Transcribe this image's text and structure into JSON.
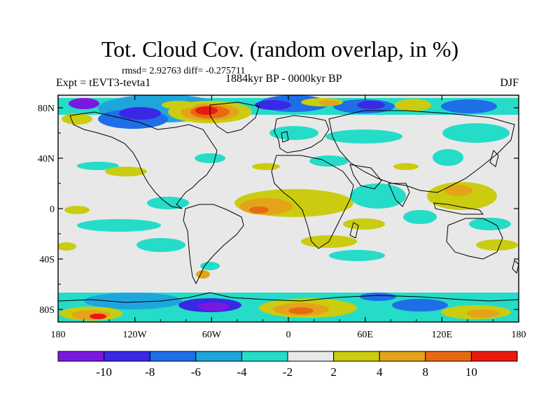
{
  "title": "Tot. Cloud Cov. (random overlap, in %)",
  "stats": "rmsd= 2.92763 diff= -0.275711",
  "experiment": "Expt = tEVT3-tevta1",
  "period": "1884kyr BP - 0000kyr BP",
  "season": "DJF",
  "x_ticks": [
    "180",
    "120W",
    "60W",
    "0",
    "60E",
    "120E",
    "180"
  ],
  "y_ticks": [
    "80N",
    "40N",
    "0",
    "40S",
    "80S"
  ],
  "colorbar": {
    "labels": [
      "-10",
      "-8",
      "-6",
      "-4",
      "-2",
      "2",
      "4",
      "8",
      "10"
    ],
    "colors": [
      "#7b18e0",
      "#3a28e6",
      "#1e6ee8",
      "#1ea6dc",
      "#25dcc8",
      "#e8e8e8",
      "#cbcc10",
      "#e5a31a",
      "#e86a10",
      "#e81a10"
    ]
  },
  "chart_data": {
    "type": "heatmap",
    "x_range": [
      -180,
      180
    ],
    "y_range": [
      -90,
      90
    ],
    "x_tick_values": [
      -180,
      -120,
      -60,
      0,
      60,
      120,
      180
    ],
    "y_tick_values": [
      80,
      40,
      0,
      -40,
      -80
    ],
    "levels": [
      -10,
      -8,
      -6,
      -4,
      -2,
      2,
      4,
      8,
      10
    ],
    "background_color": "#e8e8e8"
  }
}
